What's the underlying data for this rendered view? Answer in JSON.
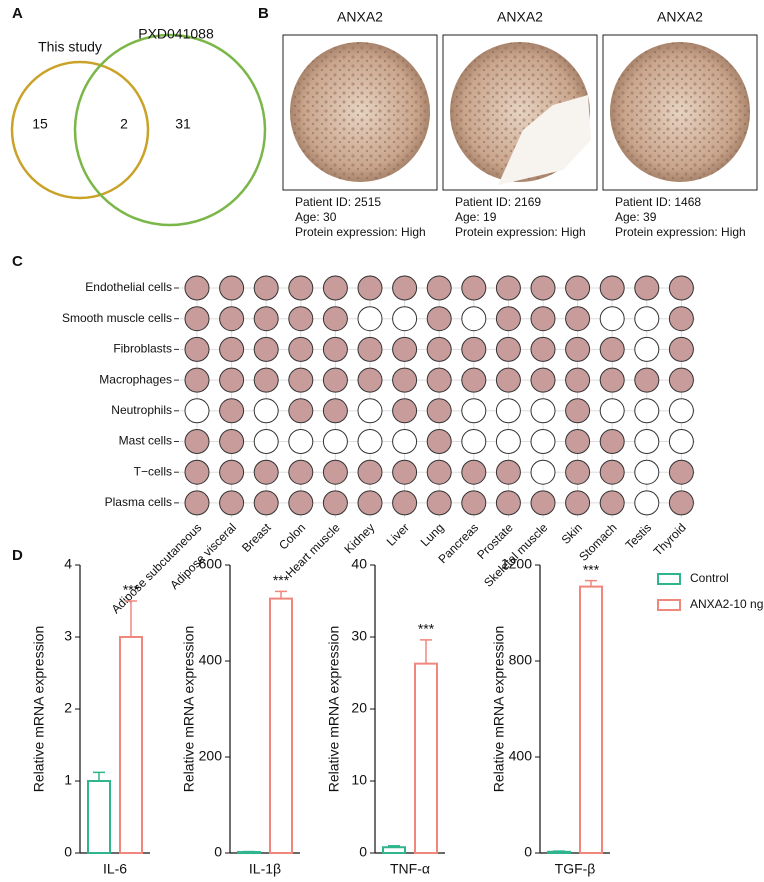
{
  "panels": [
    "A",
    "B",
    "C",
    "D"
  ],
  "venn": {
    "sets": [
      {
        "name": "This study",
        "color": "#c9a227"
      },
      {
        "name": "PXD041088",
        "color": "#7ab648"
      }
    ],
    "only_first": 15,
    "both": 2,
    "only_second": 31
  },
  "tissue_images": [
    {
      "title": "ANXA2",
      "caption": [
        "Patient ID: 2515",
        "Age: 30",
        "Protein expression: High"
      ]
    },
    {
      "title": "ANXA2",
      "caption": [
        "Patient ID: 2169",
        "Age: 19",
        "Protein expression: High"
      ]
    },
    {
      "title": "ANXA2",
      "caption": [
        "Patient ID: 1468",
        "Age: 39",
        "Protein expression: High"
      ]
    }
  ],
  "expression_matrix": {
    "rows": [
      "Endothelial cells",
      "Smooth muscle cells",
      "Fibroblasts",
      "Macrophages",
      "Neutrophils",
      "Mast cells",
      "T−cells",
      "Plasma cells"
    ],
    "columns": [
      "Adipose subcutaneous",
      "Adipose visceral",
      "Breast",
      "Colon",
      "Heart muscle",
      "Kidney",
      "Liver",
      "Lung",
      "Pancreas",
      "Prostate",
      "Skeletal muscle",
      "Skin",
      "Stomach",
      "Testis",
      "Thyroid"
    ],
    "color": "#c99c9c",
    "detected": [
      [
        true,
        true,
        true,
        true,
        true,
        true,
        true,
        true,
        true,
        true,
        true,
        true,
        true,
        true,
        true
      ],
      [
        true,
        true,
        true,
        true,
        true,
        false,
        false,
        true,
        false,
        true,
        true,
        true,
        false,
        false,
        true
      ],
      [
        true,
        true,
        true,
        true,
        true,
        true,
        true,
        true,
        true,
        true,
        true,
        true,
        true,
        false,
        true
      ],
      [
        true,
        true,
        true,
        true,
        true,
        true,
        true,
        true,
        true,
        true,
        true,
        true,
        true,
        true,
        true
      ],
      [
        false,
        true,
        false,
        true,
        true,
        false,
        true,
        true,
        false,
        false,
        false,
        true,
        false,
        false,
        false
      ],
      [
        true,
        true,
        false,
        false,
        false,
        false,
        false,
        true,
        false,
        false,
        false,
        true,
        true,
        false,
        false
      ],
      [
        true,
        true,
        true,
        true,
        true,
        true,
        true,
        true,
        true,
        true,
        false,
        true,
        true,
        false,
        true
      ],
      [
        true,
        true,
        true,
        true,
        true,
        true,
        true,
        true,
        true,
        true,
        true,
        true,
        true,
        false,
        true
      ]
    ]
  },
  "legend": [
    {
      "name": "Control",
      "color": "#2fb58e"
    },
    {
      "name": "ANXA2-10 ng",
      "color": "#f0877c"
    }
  ],
  "chart_data": [
    {
      "type": "bar",
      "ylabel": "Relative mRNA expression",
      "xlabel": "IL-6",
      "values": [
        1.0,
        3.0
      ],
      "errors": [
        0.12,
        0.5
      ],
      "annotation": "***",
      "ylim": [
        0,
        4
      ],
      "yticks": [
        0,
        1,
        2,
        3,
        4
      ]
    },
    {
      "type": "bar",
      "ylabel": "Relative mRNA expression",
      "xlabel": "IL-1β",
      "values": [
        2,
        530
      ],
      "errors": [
        1,
        15
      ],
      "annotation": "***",
      "ylim": [
        0,
        600
      ],
      "yticks": [
        0,
        200,
        400,
        600
      ]
    },
    {
      "type": "bar",
      "ylabel": "Relative mRNA expression",
      "xlabel": "TNF-α",
      "values": [
        0.8,
        26.3
      ],
      "errors": [
        0.2,
        3.3
      ],
      "annotation": "***",
      "ylim": [
        0,
        40
      ],
      "yticks": [
        0,
        10,
        20,
        30,
        40
      ]
    },
    {
      "type": "bar",
      "ylabel": "Relative mRNA expression",
      "xlabel": "TGF-β",
      "values": [
        5,
        1110
      ],
      "errors": [
        3,
        25
      ],
      "annotation": "***",
      "ylim": [
        0,
        1200
      ],
      "yticks": [
        0,
        400,
        800,
        1200
      ]
    }
  ]
}
